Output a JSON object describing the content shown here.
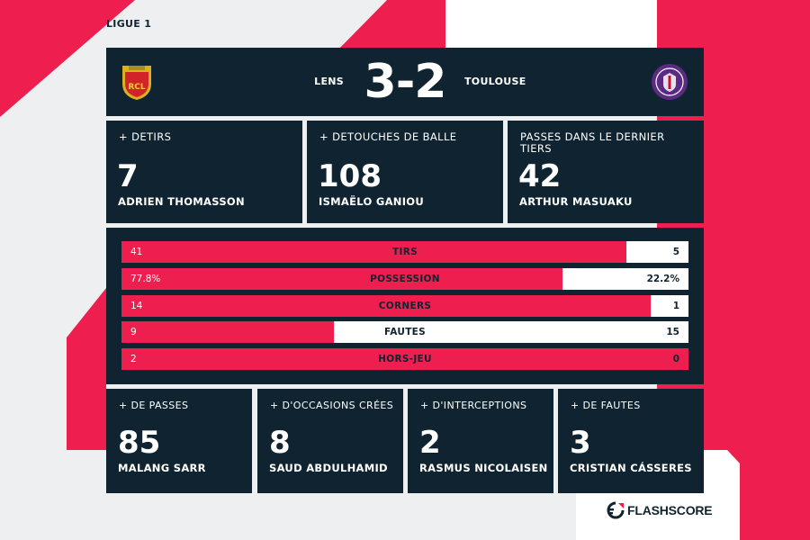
{
  "league": "LIGUE 1",
  "match": {
    "home_team": "LENS",
    "away_team": "TOULOUSE",
    "score": "3-2",
    "home_crest_text": "RCL",
    "away_crest_text": "TOULOUSE FOOTBALL CLUB"
  },
  "top_cards": [
    {
      "label": "+ DETIRS",
      "value": "7",
      "player": "ADRIEN THOMASSON"
    },
    {
      "label": "+ DETOUCHES DE BALLE",
      "value": "108",
      "player": "ISMAËLO GANIOU"
    },
    {
      "label": "PASSES DANS LE DERNIER TIERS",
      "value": "42",
      "player": "ARTHUR MASUAKU"
    }
  ],
  "comparison": [
    {
      "label": "TIRS",
      "home": "41",
      "away": "5",
      "home_share": 0.891
    },
    {
      "label": "POSSESSION",
      "home": "77.8%",
      "away": "22.2%",
      "home_share": 0.778
    },
    {
      "label": "CORNERS",
      "home": "14",
      "away": "1",
      "home_share": 0.933
    },
    {
      "label": "FAUTES",
      "home": "9",
      "away": "15",
      "home_share": 0.375
    },
    {
      "label": "HORS-JEU",
      "home": "2",
      "away": "0",
      "home_share": 1.0
    }
  ],
  "bottom_cards": [
    {
      "label": "+ DE PASSES",
      "value": "85",
      "player": "MALANG SARR"
    },
    {
      "label": "+ D'OCCASIONS CRÉES",
      "value": "8",
      "player": "SAUD ABDULHAMID"
    },
    {
      "label": "+ D'INTERCEPTIONS",
      "value": "2",
      "player": "RASMUS NICOLAISEN"
    },
    {
      "label": "+ DE FAUTES",
      "value": "3",
      "player": "CRISTIAN CÁSSERES"
    }
  ],
  "brand": "FLASHSCORE",
  "colors": {
    "accent": "#ee1f4f",
    "panel": "#0f2430",
    "background": "#eeeff1",
    "away_crest": "#5b2a82"
  }
}
